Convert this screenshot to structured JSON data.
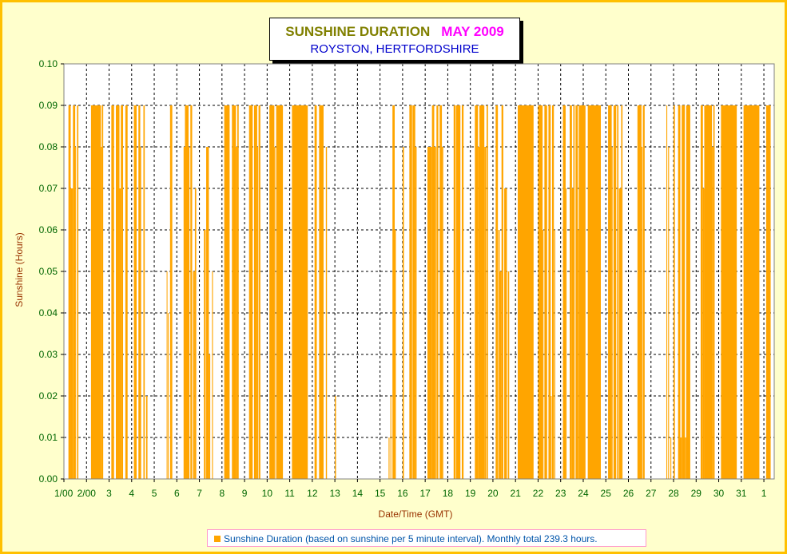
{
  "chart_data": {
    "type": "bar",
    "title": "SUNSHINE DURATION",
    "title_month": "MAY 2009",
    "subtitle": "ROYSTON, HERTFORDSHIRE",
    "xlabel": "Date/Time (GMT)",
    "ylabel": "Sunshine (Hours)",
    "ylim": [
      0,
      0.1
    ],
    "y_ticks": [
      "0.00",
      "0.01",
      "0.02",
      "0.03",
      "0.04",
      "0.05",
      "0.06",
      "0.07",
      "0.08",
      "0.09",
      "0.10"
    ],
    "x_ticks": [
      "1/00",
      "2/00",
      "3",
      "4",
      "5",
      "6",
      "7",
      "8",
      "9",
      "10",
      "11",
      "12",
      "13",
      "14",
      "15",
      "16",
      "17",
      "18",
      "19",
      "20",
      "21",
      "22",
      "23",
      "24",
      "25",
      "26",
      "27",
      "28",
      "29",
      "30",
      "31",
      "1"
    ],
    "x_range_days": [
      0,
      31.4
    ],
    "grid": true,
    "colors": {
      "bars": "#ffa500",
      "axis_text": "#006600",
      "label_text": "#993300",
      "frame": "#ffc000"
    },
    "series": [
      {
        "name": "Sunshine Duration (based on sunshine per 5 minute interval). Monthly total 239.3 hours.",
        "blocks": [
          {
            "start": 0.2,
            "end": 0.3,
            "value": 0.09
          },
          {
            "start": 0.3,
            "end": 0.4,
            "value": 0.07
          },
          {
            "start": 0.4,
            "end": 0.5,
            "value": 0.09
          },
          {
            "start": 0.5,
            "end": 0.52,
            "value": 0.08
          },
          {
            "start": 0.58,
            "end": 0.64,
            "value": 0.09
          },
          {
            "start": 1.2,
            "end": 1.64,
            "value": 0.09
          },
          {
            "start": 1.64,
            "end": 1.68,
            "value": 0.08
          },
          {
            "start": 1.68,
            "end": 1.74,
            "value": 0.09
          },
          {
            "start": 2.1,
            "end": 2.22,
            "value": 0.09
          },
          {
            "start": 2.3,
            "end": 2.46,
            "value": 0.09
          },
          {
            "start": 2.46,
            "end": 2.52,
            "value": 0.07
          },
          {
            "start": 2.52,
            "end": 2.62,
            "value": 0.09
          },
          {
            "start": 2.72,
            "end": 2.82,
            "value": 0.09
          },
          {
            "start": 3.1,
            "end": 3.22,
            "value": 0.09
          },
          {
            "start": 3.3,
            "end": 3.38,
            "value": 0.09
          },
          {
            "start": 3.38,
            "end": 3.42,
            "value": 0.08
          },
          {
            "start": 3.52,
            "end": 3.58,
            "value": 0.09
          },
          {
            "start": 3.64,
            "end": 3.7,
            "value": 0.02
          },
          {
            "start": 4.55,
            "end": 4.58,
            "value": 0.05
          },
          {
            "start": 4.6,
            "end": 4.62,
            "value": 0.04
          },
          {
            "start": 4.7,
            "end": 4.8,
            "value": 0.09
          },
          {
            "start": 5.3,
            "end": 5.36,
            "value": 0.08
          },
          {
            "start": 5.36,
            "end": 5.52,
            "value": 0.09
          },
          {
            "start": 5.52,
            "end": 5.56,
            "value": 0.08
          },
          {
            "start": 5.6,
            "end": 5.68,
            "value": 0.09
          },
          {
            "start": 5.72,
            "end": 5.8,
            "value": 0.05
          },
          {
            "start": 5.8,
            "end": 5.86,
            "value": 0.07
          },
          {
            "start": 6.2,
            "end": 6.28,
            "value": 0.06
          },
          {
            "start": 6.3,
            "end": 6.42,
            "value": 0.08
          },
          {
            "start": 6.42,
            "end": 6.48,
            "value": 0.03
          },
          {
            "start": 6.56,
            "end": 6.6,
            "value": 0.05
          },
          {
            "start": 7.1,
            "end": 7.34,
            "value": 0.09
          },
          {
            "start": 7.44,
            "end": 7.5,
            "value": 0.09
          },
          {
            "start": 7.5,
            "end": 7.62,
            "value": 0.09
          },
          {
            "start": 7.62,
            "end": 7.68,
            "value": 0.08
          },
          {
            "start": 7.68,
            "end": 7.74,
            "value": 0.09
          },
          {
            "start": 8.2,
            "end": 8.36,
            "value": 0.09
          },
          {
            "start": 8.42,
            "end": 8.56,
            "value": 0.09
          },
          {
            "start": 8.56,
            "end": 8.6,
            "value": 0.08
          },
          {
            "start": 8.62,
            "end": 8.7,
            "value": 0.09
          },
          {
            "start": 9.1,
            "end": 9.32,
            "value": 0.09
          },
          {
            "start": 9.32,
            "end": 9.36,
            "value": 0.08
          },
          {
            "start": 9.4,
            "end": 9.7,
            "value": 0.09
          },
          {
            "start": 10.1,
            "end": 10.8,
            "value": 0.09
          },
          {
            "start": 11.1,
            "end": 11.2,
            "value": 0.09
          },
          {
            "start": 11.3,
            "end": 11.5,
            "value": 0.09
          },
          {
            "start": 11.6,
            "end": 11.65,
            "value": 0.08
          },
          {
            "start": 12.0,
            "end": 12.05,
            "value": 0.02
          },
          {
            "start": 14.38,
            "end": 14.42,
            "value": 0.01
          },
          {
            "start": 14.46,
            "end": 14.5,
            "value": 0.02
          },
          {
            "start": 14.55,
            "end": 14.65,
            "value": 0.09
          },
          {
            "start": 14.65,
            "end": 14.7,
            "value": 0.06
          },
          {
            "start": 15.0,
            "end": 15.06,
            "value": 0.08
          },
          {
            "start": 15.3,
            "end": 15.42,
            "value": 0.09
          },
          {
            "start": 15.44,
            "end": 15.56,
            "value": 0.09
          },
          {
            "start": 15.56,
            "end": 15.62,
            "value": 0.08
          },
          {
            "start": 16.1,
            "end": 16.3,
            "value": 0.08
          },
          {
            "start": 16.3,
            "end": 16.4,
            "value": 0.09
          },
          {
            "start": 16.4,
            "end": 16.48,
            "value": 0.08
          },
          {
            "start": 16.5,
            "end": 16.58,
            "value": 0.09
          },
          {
            "start": 16.64,
            "end": 16.74,
            "value": 0.09
          },
          {
            "start": 16.74,
            "end": 16.8,
            "value": 0.08
          },
          {
            "start": 17.26,
            "end": 17.34,
            "value": 0.09
          },
          {
            "start": 17.36,
            "end": 17.56,
            "value": 0.09
          },
          {
            "start": 17.62,
            "end": 17.7,
            "value": 0.09
          },
          {
            "start": 18.2,
            "end": 18.34,
            "value": 0.09
          },
          {
            "start": 18.34,
            "end": 18.4,
            "value": 0.08
          },
          {
            "start": 18.4,
            "end": 18.62,
            "value": 0.09
          },
          {
            "start": 18.62,
            "end": 18.7,
            "value": 0.08
          },
          {
            "start": 18.72,
            "end": 18.78,
            "value": 0.09
          },
          {
            "start": 19.12,
            "end": 19.22,
            "value": 0.09
          },
          {
            "start": 19.24,
            "end": 19.3,
            "value": 0.06
          },
          {
            "start": 19.3,
            "end": 19.38,
            "value": 0.05
          },
          {
            "start": 19.38,
            "end": 19.46,
            "value": 0.09
          },
          {
            "start": 19.5,
            "end": 19.62,
            "value": 0.07
          },
          {
            "start": 19.66,
            "end": 19.72,
            "value": 0.05
          },
          {
            "start": 20.1,
            "end": 20.8,
            "value": 0.09
          },
          {
            "start": 21.0,
            "end": 21.2,
            "value": 0.09
          },
          {
            "start": 21.2,
            "end": 21.24,
            "value": 0.06
          },
          {
            "start": 21.28,
            "end": 21.4,
            "value": 0.09
          },
          {
            "start": 21.46,
            "end": 21.56,
            "value": 0.09
          },
          {
            "start": 21.56,
            "end": 21.6,
            "value": 0.02
          },
          {
            "start": 21.62,
            "end": 21.7,
            "value": 0.09
          },
          {
            "start": 21.72,
            "end": 21.76,
            "value": 0.06
          },
          {
            "start": 22.1,
            "end": 22.22,
            "value": 0.09
          },
          {
            "start": 22.22,
            "end": 22.26,
            "value": 0.07
          },
          {
            "start": 22.4,
            "end": 22.5,
            "value": 0.09
          },
          {
            "start": 22.5,
            "end": 22.56,
            "value": 0.07
          },
          {
            "start": 22.56,
            "end": 22.62,
            "value": 0.09
          },
          {
            "start": 22.66,
            "end": 22.76,
            "value": 0.09
          },
          {
            "start": 22.76,
            "end": 22.8,
            "value": 0.06
          },
          {
            "start": 22.8,
            "end": 23.1,
            "value": 0.09
          },
          {
            "start": 23.2,
            "end": 23.78,
            "value": 0.09
          },
          {
            "start": 24.1,
            "end": 24.26,
            "value": 0.09
          },
          {
            "start": 24.26,
            "end": 24.3,
            "value": 0.08
          },
          {
            "start": 24.34,
            "end": 24.46,
            "value": 0.09
          },
          {
            "start": 24.5,
            "end": 24.56,
            "value": 0.09
          },
          {
            "start": 24.58,
            "end": 24.68,
            "value": 0.07
          },
          {
            "start": 24.68,
            "end": 24.74,
            "value": 0.09
          },
          {
            "start": 25.4,
            "end": 25.58,
            "value": 0.09
          },
          {
            "start": 25.58,
            "end": 25.62,
            "value": 0.08
          },
          {
            "start": 25.64,
            "end": 25.72,
            "value": 0.09
          },
          {
            "start": 26.68,
            "end": 26.72,
            "value": 0.09
          },
          {
            "start": 26.76,
            "end": 26.8,
            "value": 0.08
          },
          {
            "start": 26.86,
            "end": 26.9,
            "value": 0.01
          },
          {
            "start": 27.0,
            "end": 27.06,
            "value": 0.09
          },
          {
            "start": 27.2,
            "end": 27.3,
            "value": 0.09
          },
          {
            "start": 27.3,
            "end": 27.36,
            "value": 0.01
          },
          {
            "start": 27.36,
            "end": 27.5,
            "value": 0.09
          },
          {
            "start": 27.5,
            "end": 27.56,
            "value": 0.01
          },
          {
            "start": 27.56,
            "end": 27.74,
            "value": 0.09
          },
          {
            "start": 28.2,
            "end": 28.3,
            "value": 0.09
          },
          {
            "start": 28.3,
            "end": 28.36,
            "value": 0.07
          },
          {
            "start": 28.36,
            "end": 28.7,
            "value": 0.09
          },
          {
            "start": 28.7,
            "end": 28.76,
            "value": 0.08
          },
          {
            "start": 28.76,
            "end": 28.82,
            "value": 0.09
          },
          {
            "start": 29.1,
            "end": 29.8,
            "value": 0.09
          },
          {
            "start": 30.1,
            "end": 30.8,
            "value": 0.09
          },
          {
            "start": 31.1,
            "end": 31.3,
            "value": 0.09
          }
        ]
      }
    ]
  },
  "legend": {
    "text": "Sunshine Duration (based on sunshine per 5 minute interval). Monthly total 239.3 hours."
  }
}
